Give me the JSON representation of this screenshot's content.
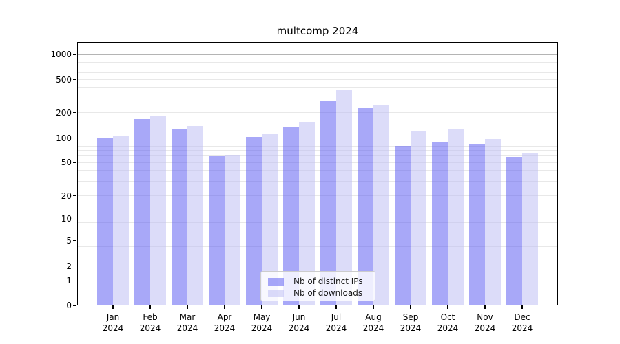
{
  "title": "multcomp 2024",
  "chart_data": {
    "type": "bar",
    "title": "multcomp 2024",
    "xlabel": "",
    "ylabel": "",
    "yscale": "log-like (asinh/symlog)",
    "yticks": [
      0,
      1,
      2,
      5,
      10,
      20,
      50,
      100,
      200,
      500,
      1000
    ],
    "ylim": [
      0,
      1400
    ],
    "grid": "horizontal; dark lines at decades (1,10,100,1000), light minor log lines",
    "legend_position": "lower center",
    "categories": [
      "Jan 2024",
      "Feb 2024",
      "Mar 2024",
      "Apr 2024",
      "May 2024",
      "Jun 2024",
      "Jul 2024",
      "Aug 2024",
      "Sep 2024",
      "Oct 2024",
      "Nov 2024",
      "Dec 2024"
    ],
    "series": [
      {
        "name": "Nb of distinct IPs",
        "color": "rgba(81,81,241,0.5)",
        "solid_equivalent": "#a8a8f8",
        "values": [
          100,
          168,
          130,
          60,
          103,
          137,
          275,
          228,
          80,
          89,
          85,
          58
        ]
      },
      {
        "name": "Nb of downloads",
        "color": "rgba(185,185,243,0.5)",
        "solid_equivalent": "#dcdcf9",
        "values": [
          106,
          184,
          139,
          62,
          111,
          155,
          374,
          243,
          122,
          128,
          97,
          64
        ]
      }
    ]
  },
  "colors": {
    "major_gridline": "#b4b4b4",
    "minor_gridline": "#e8e8e8",
    "axis": "#000000",
    "legend_border": "#cccccc"
  }
}
